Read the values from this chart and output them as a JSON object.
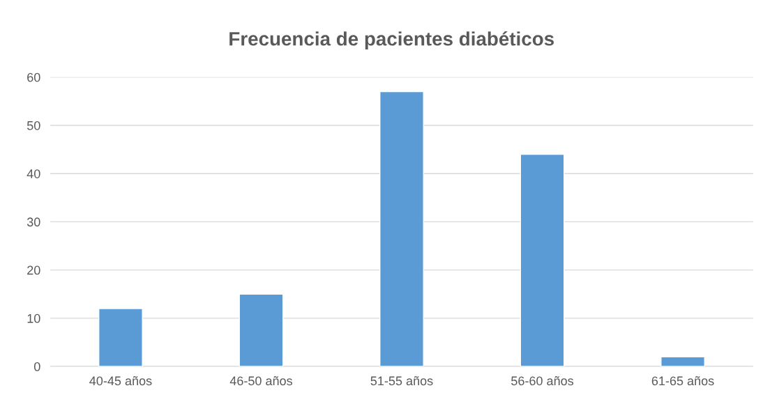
{
  "chart_data": {
    "type": "bar",
    "title": "Frecuencia de pacientes diabéticos",
    "categories": [
      "40-45 años",
      "46-50 años",
      "51-55 años",
      "56-60 años",
      "61-65 años"
    ],
    "values": [
      12,
      15,
      57,
      44,
      2
    ],
    "color": "#5b9bd5",
    "ylim": [
      0,
      60
    ],
    "yticks": [
      0,
      10,
      20,
      30,
      40,
      50,
      60
    ],
    "grid": "y"
  }
}
